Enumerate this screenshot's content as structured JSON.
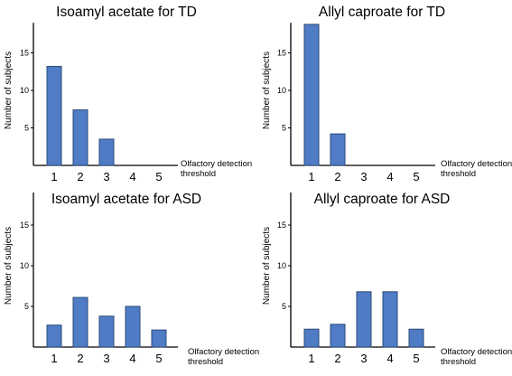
{
  "colors": {
    "bar": "#4f7cc4",
    "bar_stroke": "#2a4a7a",
    "axis": "#000000"
  },
  "chart_data": [
    {
      "type": "bar",
      "title": "Isoamyl acetate for TD",
      "categories": [
        "1",
        "2",
        "3",
        "4",
        "5"
      ],
      "values": [
        13.2,
        7.4,
        3.5,
        0,
        0
      ],
      "ylabel": "Number of subjects",
      "xlabel_line1": "Olfactory detection",
      "xlabel_line2": "threshold",
      "yticks": [
        "5",
        "10",
        "15"
      ],
      "ylim": [
        0,
        19
      ],
      "grid": false
    },
    {
      "type": "bar",
      "title": "Allyl  caproate for TD",
      "categories": [
        "1",
        "2",
        "3",
        "4",
        "5"
      ],
      "values": [
        18.8,
        4.2,
        0,
        0,
        0
      ],
      "ylabel": "Number of subjects",
      "xlabel_line1": "Olfactory detection",
      "xlabel_line2": "threshold",
      "yticks": [
        "5",
        "10",
        "15"
      ],
      "ylim": [
        0,
        19
      ],
      "grid": false
    },
    {
      "type": "bar",
      "title": "Isoamyl acetate for ASD",
      "categories": [
        "1",
        "2",
        "3",
        "4",
        "5"
      ],
      "values": [
        2.7,
        6.1,
        3.8,
        5.0,
        2.1
      ],
      "ylabel": "Number of subjects",
      "xlabel_line1": "Olfactory detection",
      "xlabel_line2": "threshold",
      "yticks": [
        "5",
        "10",
        "15"
      ],
      "ylim": [
        0,
        19
      ],
      "grid": false
    },
    {
      "type": "bar",
      "title": "Allyl  caproate for ASD",
      "categories": [
        "1",
        "2",
        "3",
        "4",
        "5"
      ],
      "values": [
        2.2,
        2.8,
        6.8,
        6.8,
        2.2
      ],
      "ylabel": "Number of subjects",
      "xlabel_line1": "Olfactory detection",
      "xlabel_line2": "threshold",
      "yticks": [
        "5",
        "10",
        "15"
      ],
      "ylim": [
        0,
        19
      ],
      "grid": false
    }
  ]
}
